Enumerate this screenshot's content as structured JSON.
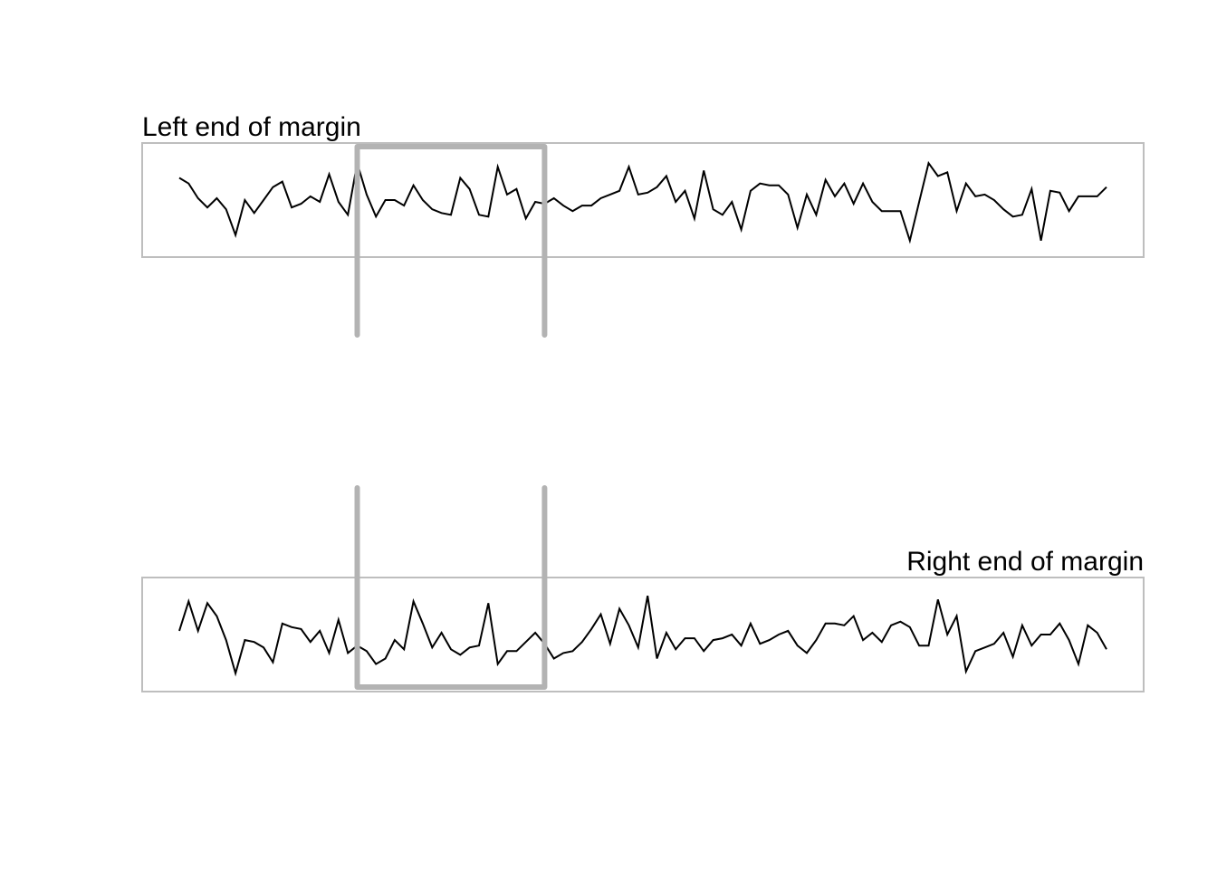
{
  "colors": {
    "frame": "#bebebe",
    "highlight": "#b3b3b3",
    "line": "#000000",
    "background": "#ffffff"
  },
  "chart_data": [
    {
      "type": "line",
      "title": "Left end of margin",
      "title_align": "left",
      "highlight_box": {
        "x_from": 20,
        "x_to": 40,
        "style": "open-bottom"
      },
      "grid": false,
      "axes": "none",
      "ylim": [
        -2.6,
        2.6
      ],
      "x": [
        1,
        2,
        3,
        4,
        5,
        6,
        7,
        8,
        9,
        10,
        11,
        12,
        13,
        14,
        15,
        16,
        17,
        18,
        19,
        20,
        21,
        22,
        23,
        24,
        25,
        26,
        27,
        28,
        29,
        30,
        31,
        32,
        33,
        34,
        35,
        36,
        37,
        38,
        39,
        40,
        41,
        42,
        43,
        44,
        45,
        46,
        47,
        48,
        49,
        50,
        51,
        52,
        53,
        54,
        55,
        56,
        57,
        58,
        59,
        60,
        61,
        62,
        63,
        64,
        65,
        66,
        67,
        68,
        69,
        70,
        71,
        72,
        73,
        74,
        75,
        76,
        77,
        78,
        79,
        80,
        81,
        82,
        83,
        84,
        85,
        86,
        87,
        88,
        89,
        90,
        91,
        92,
        93,
        94,
        95,
        96,
        97,
        98,
        99,
        100
      ],
      "values": [
        1.2,
        0.9,
        0.1,
        -0.4,
        0.1,
        -0.5,
        -1.9,
        0.0,
        -0.7,
        0.0,
        0.7,
        1.0,
        -0.4,
        -0.2,
        0.2,
        -0.1,
        1.4,
        -0.1,
        -0.8,
        2.0,
        0.3,
        -0.9,
        0.0,
        0.0,
        -0.3,
        0.8,
        0.0,
        -0.5,
        -0.7,
        -0.8,
        1.2,
        0.6,
        -0.8,
        -0.9,
        1.8,
        0.3,
        0.6,
        -1.0,
        -0.1,
        -0.2,
        0.1,
        -0.3,
        -0.6,
        -0.3,
        -0.3,
        0.1,
        0.3,
        0.5,
        1.8,
        0.3,
        0.4,
        0.7,
        1.3,
        -0.1,
        0.5,
        -1.0,
        1.6,
        -0.5,
        -0.8,
        -0.1,
        -1.6,
        0.5,
        0.9,
        0.8,
        0.8,
        0.3,
        -1.5,
        0.3,
        -0.8,
        1.1,
        0.2,
        0.9,
        -0.2,
        0.9,
        -0.1,
        -0.6,
        -0.6,
        -0.6,
        -2.2,
        -0.1,
        2.0,
        1.3,
        1.5,
        -0.6,
        0.9,
        0.2,
        0.3,
        0.0,
        -0.5,
        -0.9,
        -0.8,
        0.6,
        -2.2,
        0.5,
        0.4,
        -0.6,
        0.2,
        0.2,
        0.2,
        0.7
      ]
    },
    {
      "type": "line",
      "title": "Right end of margin",
      "title_align": "right",
      "highlight_box": {
        "x_from": 20,
        "x_to": 40,
        "style": "open-top"
      },
      "grid": false,
      "axes": "none",
      "ylim": [
        -2.6,
        2.6
      ],
      "x": [
        1,
        2,
        3,
        4,
        5,
        6,
        7,
        8,
        9,
        10,
        11,
        12,
        13,
        14,
        15,
        16,
        17,
        18,
        19,
        20,
        21,
        22,
        23,
        24,
        25,
        26,
        27,
        28,
        29,
        30,
        31,
        32,
        33,
        34,
        35,
        36,
        37,
        38,
        39,
        40,
        41,
        42,
        43,
        44,
        45,
        46,
        47,
        48,
        49,
        50,
        51,
        52,
        53,
        54,
        55,
        56,
        57,
        58,
        59,
        60,
        61,
        62,
        63,
        64,
        65,
        66,
        67,
        68,
        69,
        70,
        71,
        72,
        73,
        74,
        75,
        76,
        77,
        78,
        79,
        80,
        81,
        82,
        83,
        84,
        85,
        86,
        87,
        88,
        89,
        90,
        91,
        92,
        93,
        94,
        95,
        96,
        97,
        98,
        99,
        100
      ],
      "values": [
        0.2,
        1.8,
        0.2,
        1.7,
        1.0,
        -0.3,
        -2.1,
        -0.3,
        -0.4,
        -0.7,
        -1.5,
        0.6,
        0.4,
        0.3,
        -0.4,
        0.2,
        -1.0,
        0.8,
        -1.0,
        -0.6,
        -0.9,
        -1.6,
        -1.3,
        -0.3,
        -0.8,
        1.8,
        0.6,
        -0.7,
        0.1,
        -0.8,
        -1.1,
        -0.7,
        -0.6,
        1.7,
        -1.6,
        -0.9,
        -0.9,
        -0.4,
        0.1,
        -0.5,
        -1.3,
        -1.0,
        -0.9,
        -0.4,
        0.3,
        1.1,
        -0.5,
        1.4,
        0.5,
        -0.7,
        2.1,
        -1.3,
        0.1,
        -0.8,
        -0.2,
        -0.2,
        -0.9,
        -0.3,
        -0.2,
        0.0,
        -0.6,
        0.6,
        -0.5,
        -0.3,
        0.0,
        0.2,
        -0.6,
        -1.0,
        -0.3,
        0.6,
        0.6,
        0.5,
        1.0,
        -0.3,
        0.1,
        -0.4,
        0.5,
        0.7,
        0.4,
        -0.6,
        -0.6,
        1.9,
        0.0,
        1.0,
        -2.0,
        -0.9,
        -0.7,
        -0.5,
        0.1,
        -1.2,
        0.5,
        -0.6,
        0.0,
        0.0,
        0.6,
        -0.3,
        -1.6,
        0.5,
        0.1,
        -0.8
      ]
    }
  ]
}
